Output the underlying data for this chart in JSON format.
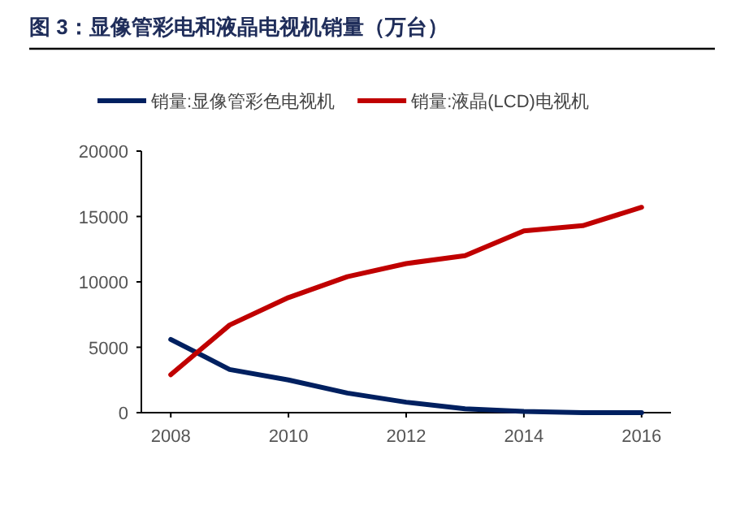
{
  "chart_data": {
    "type": "line",
    "title": "图 3：显像管彩电和液晶电视机销量（万台）",
    "x": [
      2008,
      2009,
      2010,
      2011,
      2012,
      2013,
      2014,
      2015,
      2016
    ],
    "series": [
      {
        "name": "销量:显像管彩色电视机",
        "color": "#002060",
        "values": [
          5600,
          3300,
          2500,
          1500,
          800,
          300,
          100,
          0,
          0
        ]
      },
      {
        "name": "销量:液晶(LCD)电视机",
        "color": "#c00000",
        "values": [
          2900,
          6700,
          8800,
          10400,
          11400,
          12000,
          13900,
          14300,
          15700
        ]
      }
    ],
    "xlim": [
      2007.5,
      2016.5
    ],
    "xticks": [
      2008,
      2010,
      2012,
      2014,
      2016
    ],
    "ylim": [
      0,
      20000
    ],
    "yticks": [
      0,
      5000,
      10000,
      15000,
      20000
    ],
    "grid": false,
    "legend": "top",
    "marker": "none",
    "line_style": "solid"
  }
}
